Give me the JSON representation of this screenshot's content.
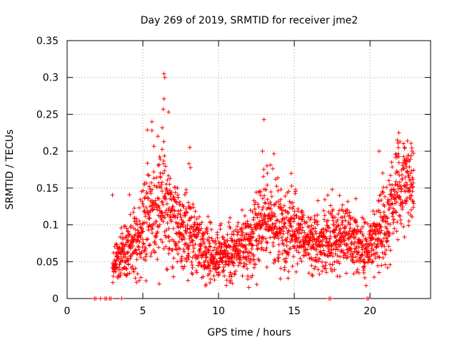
{
  "chart_data": {
    "type": "scatter",
    "title": "Day 269 of 2019, SRMTID for receiver jme2",
    "xlabel": "GPS time / hours",
    "ylabel": "SRMTID / TECUs",
    "xlim": [
      0,
      24
    ],
    "ylim": [
      0,
      0.35
    ],
    "grid": true,
    "marker": "+",
    "series_color": "#ff0000",
    "x_ticks": [
      0,
      5,
      10,
      15,
      20
    ],
    "x_tick_labels": [
      "0",
      "5",
      "10",
      "15",
      "20"
    ],
    "y_ticks": [
      0,
      0.05,
      0.1,
      0.15,
      0.2,
      0.25,
      0.3,
      0.35
    ],
    "y_tick_labels": [
      "0",
      "0.05",
      "0.1",
      "0.15",
      "0.2",
      "0.25",
      "0.3",
      "0.35"
    ],
    "trend": {
      "x": [
        3.0,
        3.3,
        3.7,
        4.2,
        4.7,
        5.2,
        5.7,
        6.2,
        6.5,
        7.0,
        7.5,
        8.0,
        8.5,
        9.0,
        9.5,
        10.0,
        10.5,
        11.0,
        11.5,
        12.0,
        12.5,
        13.0,
        13.5,
        14.0,
        14.5,
        15.0,
        15.5,
        16.0,
        16.5,
        17.0,
        17.5,
        18.0,
        18.5,
        19.0,
        19.5,
        20.0,
        20.5,
        21.0,
        21.5,
        22.0,
        22.5,
        22.9
      ],
      "y": [
        0.04,
        0.05,
        0.06,
        0.07,
        0.08,
        0.1,
        0.12,
        0.13,
        0.12,
        0.1,
        0.085,
        0.09,
        0.08,
        0.065,
        0.06,
        0.055,
        0.06,
        0.065,
        0.07,
        0.075,
        0.09,
        0.11,
        0.105,
        0.09,
        0.1,
        0.095,
        0.085,
        0.08,
        0.075,
        0.08,
        0.085,
        0.08,
        0.085,
        0.075,
        0.07,
        0.07,
        0.085,
        0.1,
        0.13,
        0.15,
        0.16,
        0.15
      ],
      "spread": [
        0.01,
        0.015,
        0.018,
        0.02,
        0.022,
        0.028,
        0.035,
        0.04,
        0.04,
        0.03,
        0.025,
        0.025,
        0.022,
        0.018,
        0.016,
        0.015,
        0.016,
        0.018,
        0.02,
        0.022,
        0.025,
        0.03,
        0.03,
        0.025,
        0.028,
        0.025,
        0.022,
        0.02,
        0.02,
        0.022,
        0.025,
        0.022,
        0.022,
        0.02,
        0.018,
        0.018,
        0.022,
        0.025,
        0.03,
        0.03,
        0.03,
        0.03
      ],
      "points_per_hour": 110
    },
    "peaks": [
      {
        "x": 6.4,
        "y": 0.305
      },
      {
        "x": 6.45,
        "y": 0.3
      },
      {
        "x": 6.35,
        "y": 0.257
      },
      {
        "x": 6.4,
        "y": 0.271
      },
      {
        "x": 6.7,
        "y": 0.253
      },
      {
        "x": 5.6,
        "y": 0.24
      },
      {
        "x": 5.6,
        "y": 0.228
      },
      {
        "x": 8.1,
        "y": 0.205
      },
      {
        "x": 8.05,
        "y": 0.183
      },
      {
        "x": 13.0,
        "y": 0.243
      },
      {
        "x": 12.9,
        "y": 0.2
      },
      {
        "x": 13.2,
        "y": 0.18
      },
      {
        "x": 14.8,
        "y": 0.17
      },
      {
        "x": 21.9,
        "y": 0.225
      },
      {
        "x": 21.8,
        "y": 0.215
      },
      {
        "x": 22.3,
        "y": 0.204
      },
      {
        "x": 20.6,
        "y": 0.2
      },
      {
        "x": 12.0,
        "y": 0.015
      },
      {
        "x": 18.0,
        "y": 0.03
      }
    ],
    "zero_points": [
      {
        "x": 1.8,
        "y": 0
      },
      {
        "x": 1.9,
        "y": 0
      },
      {
        "x": 2.2,
        "y": 0
      },
      {
        "x": 2.5,
        "y": 0
      },
      {
        "x": 2.6,
        "y": 0
      },
      {
        "x": 2.8,
        "y": 0
      },
      {
        "x": 2.9,
        "y": 0
      },
      {
        "x": 3.6,
        "y": 0
      },
      {
        "x": 17.3,
        "y": 0
      },
      {
        "x": 17.4,
        "y": 0
      },
      {
        "x": 19.8,
        "y": 0
      },
      {
        "x": 19.9,
        "y": 0
      }
    ]
  }
}
